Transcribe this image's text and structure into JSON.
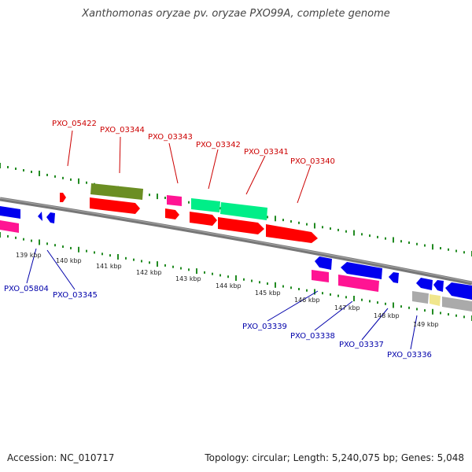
{
  "title": "Xanthomonas oryzae pv. oryzae PXO99A, complete genome",
  "footer": {
    "accession": "Accession: NC_010717",
    "summary": "Topology: circular; Length: 5,240,075 bp; Genes: 5,048"
  },
  "colors": {
    "backbone": "#808080",
    "tick": "#228B22",
    "label_top": "#cc0000",
    "label_bottom": "#0000aa"
  },
  "kbp_labels": [
    "139 kbp",
    "140 kbp",
    "141 kbp",
    "142 kbp",
    "143 kbp",
    "144 kbp",
    "145 kbp",
    "146 kbp",
    "147 kbp",
    "148 kbp",
    "149 kbp"
  ],
  "gene_labels_top": [
    "PXO_05422",
    "PXO_03344",
    "PXO_03343",
    "PXO_03342",
    "PXO_03341",
    "PXO_03340"
  ],
  "gene_labels_bottom": [
    "PXO_05804",
    "PXO_03345",
    "PXO_03339",
    "PXO_03338",
    "PXO_03337",
    "PXO_03336"
  ]
}
